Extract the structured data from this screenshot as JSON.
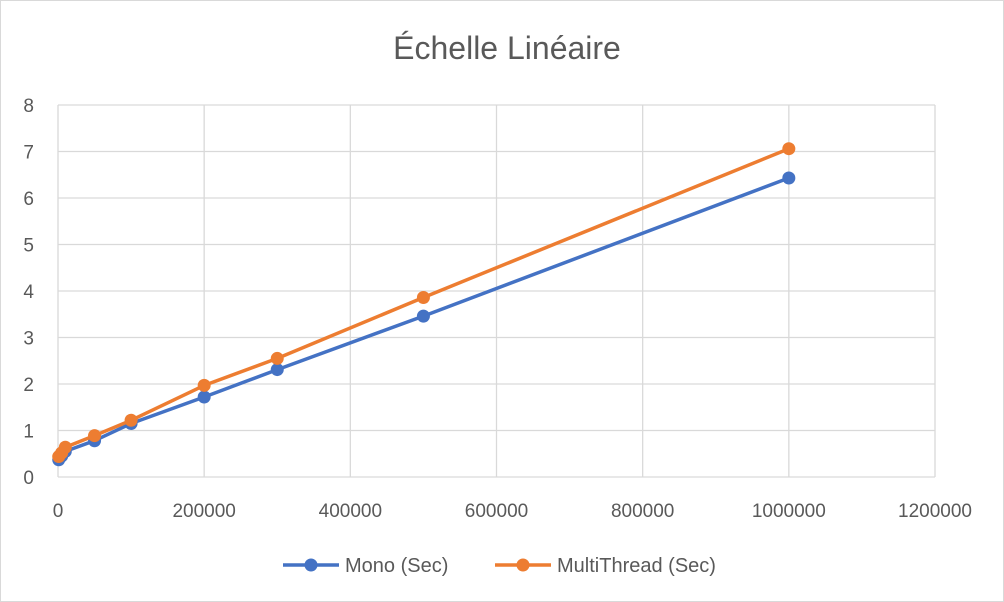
{
  "chart_data": {
    "type": "scatter",
    "title": "Échelle Linéaire",
    "xlabel": "",
    "ylabel": "",
    "xlim": [
      0,
      1200000
    ],
    "ylim": [
      0,
      8
    ],
    "x_ticks": [
      0,
      200000,
      400000,
      600000,
      800000,
      1000000,
      1200000
    ],
    "y_ticks": [
      0,
      1,
      2,
      3,
      4,
      5,
      6,
      7,
      8
    ],
    "x_tick_labels": [
      "0",
      "200000",
      "400000",
      "600000",
      "800000",
      "1000000",
      "1200000"
    ],
    "y_tick_labels": [
      "0",
      "1",
      "2",
      "3",
      "4",
      "5",
      "6",
      "7",
      "8"
    ],
    "grid": true,
    "legend_position": "bottom",
    "series": [
      {
        "name": "Mono (Sec)",
        "color": "#4472c4",
        "x": [
          1000,
          5000,
          10000,
          50000,
          100000,
          200000,
          300000,
          500000,
          1000000
        ],
        "y": [
          0.37,
          0.45,
          0.55,
          0.78,
          1.15,
          1.72,
          2.31,
          3.46,
          6.43
        ]
      },
      {
        "name": "MultiThread (Sec)",
        "color": "#ed7d31",
        "x": [
          1000,
          5000,
          10000,
          50000,
          100000,
          200000,
          300000,
          500000,
          1000000
        ],
        "y": [
          0.44,
          0.52,
          0.64,
          0.89,
          1.22,
          1.97,
          2.55,
          3.86,
          7.06
        ]
      }
    ]
  }
}
